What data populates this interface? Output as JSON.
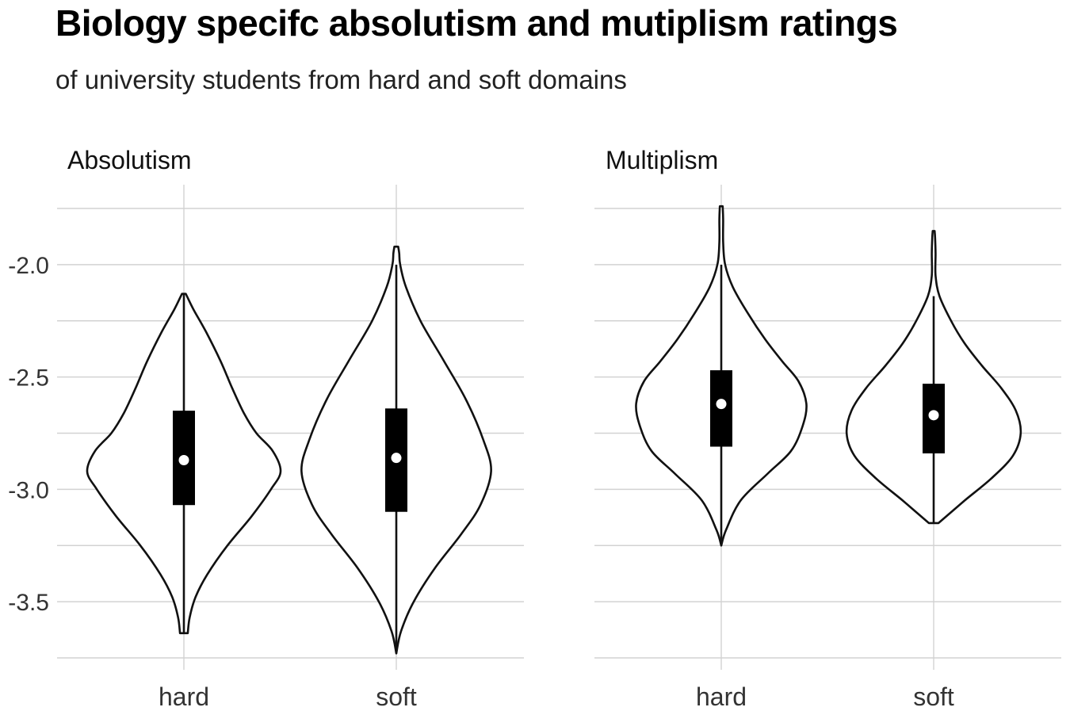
{
  "chart_data": {
    "type": "violin",
    "title": "Biology specifc absolutism and mutiplism ratings",
    "subtitle": "of university students from hard and soft domains",
    "ylim": [
      -3.75,
      -1.75
    ],
    "y_ticks": [
      -2.0,
      -2.5,
      -3.0,
      -3.5
    ],
    "y_tick_labels": [
      "-2.0",
      "-2.5",
      "-3.0",
      "-3.5"
    ],
    "categories": [
      "hard",
      "soft"
    ],
    "grid": true,
    "panels": [
      {
        "name": "Absolutism",
        "groups": [
          {
            "category": "hard",
            "min": -3.64,
            "max": -2.13,
            "q1": -3.07,
            "median": -2.87,
            "q3": -2.65,
            "whisker_low": -3.64,
            "whisker_high": -2.13,
            "density": [
              [
                -3.64,
                0.04
              ],
              [
                -3.57,
                0.06
              ],
              [
                -3.48,
                0.12
              ],
              [
                -3.38,
                0.24
              ],
              [
                -3.25,
                0.45
              ],
              [
                -3.12,
                0.7
              ],
              [
                -3.0,
                0.9
              ],
              [
                -2.92,
                1.0
              ],
              [
                -2.83,
                0.92
              ],
              [
                -2.75,
                0.75
              ],
              [
                -2.66,
                0.62
              ],
              [
                -2.55,
                0.5
              ],
              [
                -2.43,
                0.38
              ],
              [
                -2.3,
                0.23
              ],
              [
                -2.2,
                0.1
              ],
              [
                -2.13,
                0.02
              ]
            ]
          },
          {
            "category": "soft",
            "min": -3.73,
            "max": -1.92,
            "q1": -3.1,
            "median": -2.86,
            "q3": -2.64,
            "whisker_low": -3.73,
            "whisker_high": -2.0,
            "density": [
              [
                -3.73,
                0.0
              ],
              [
                -3.63,
                0.05
              ],
              [
                -3.5,
                0.18
              ],
              [
                -3.35,
                0.4
              ],
              [
                -3.2,
                0.67
              ],
              [
                -3.07,
                0.87
              ],
              [
                -2.92,
                0.98
              ],
              [
                -2.78,
                0.9
              ],
              [
                -2.6,
                0.72
              ],
              [
                -2.42,
                0.48
              ],
              [
                -2.25,
                0.25
              ],
              [
                -2.1,
                0.1
              ],
              [
                -2.0,
                0.04
              ],
              [
                -1.95,
                0.03
              ],
              [
                -1.92,
                0.02
              ]
            ]
          }
        ]
      },
      {
        "name": "Multiplism",
        "groups": [
          {
            "category": "hard",
            "min": -3.25,
            "max": -1.74,
            "q1": -2.81,
            "median": -2.62,
            "q3": -2.47,
            "whisker_low": -3.25,
            "whisker_high": -2.0,
            "density": [
              [
                -3.25,
                0.0
              ],
              [
                -3.18,
                0.05
              ],
              [
                -3.05,
                0.2
              ],
              [
                -2.93,
                0.48
              ],
              [
                -2.83,
                0.72
              ],
              [
                -2.72,
                0.84
              ],
              [
                -2.62,
                0.88
              ],
              [
                -2.52,
                0.8
              ],
              [
                -2.43,
                0.63
              ],
              [
                -2.33,
                0.45
              ],
              [
                -2.22,
                0.28
              ],
              [
                -2.1,
                0.12
              ],
              [
                -2.0,
                0.04
              ],
              [
                -1.9,
                0.02
              ],
              [
                -1.8,
                0.02
              ],
              [
                -1.74,
                0.015
              ]
            ]
          },
          {
            "category": "soft",
            "min": -3.15,
            "max": -1.85,
            "q1": -2.84,
            "median": -2.67,
            "q3": -2.53,
            "whisker_low": -3.15,
            "whisker_high": -2.14,
            "density": [
              [
                -3.15,
                0.05
              ],
              [
                -3.05,
                0.32
              ],
              [
                -2.95,
                0.6
              ],
              [
                -2.85,
                0.82
              ],
              [
                -2.75,
                0.9
              ],
              [
                -2.65,
                0.85
              ],
              [
                -2.55,
                0.7
              ],
              [
                -2.45,
                0.5
              ],
              [
                -2.35,
                0.32
              ],
              [
                -2.25,
                0.18
              ],
              [
                -2.14,
                0.06
              ],
              [
                -2.05,
                0.02
              ],
              [
                -1.95,
                0.02
              ],
              [
                -1.88,
                0.015
              ],
              [
                -1.85,
                0.01
              ]
            ]
          }
        ]
      }
    ]
  }
}
